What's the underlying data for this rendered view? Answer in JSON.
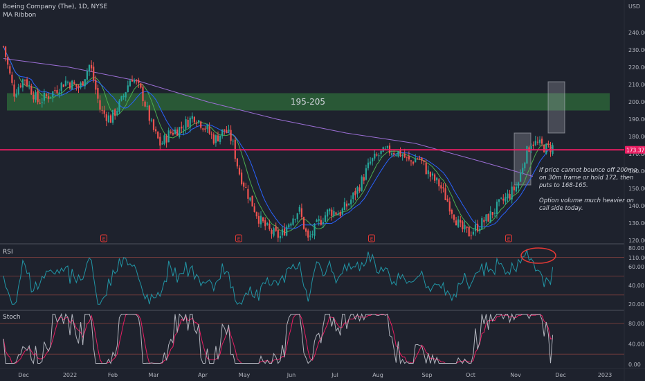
{
  "header": {
    "symbol": "Boeing Company (The), 1D, NYSE",
    "indicator": "MA Ribbon",
    "currency": "USD"
  },
  "price_pane": {
    "ylim": [
      110,
      245
    ],
    "yticks": [
      "240.00",
      "230.00",
      "220.00",
      "210.00",
      "200.00",
      "190.00",
      "180.00",
      "170.00",
      "160.00",
      "150.00",
      "140.00",
      "130.00",
      "120.00",
      "110.00"
    ],
    "ytick_values": [
      240,
      230,
      220,
      210,
      200,
      190,
      180,
      170,
      160,
      150,
      140,
      130,
      120,
      110
    ],
    "zone": {
      "label": "195-205",
      "low": 195,
      "high": 205,
      "color": "#2e6b3a"
    },
    "level": {
      "value": 172.3,
      "color": "#e91e63"
    },
    "price_badge": "173.37",
    "earnings_markers": [
      "E",
      "E",
      "E",
      "E"
    ],
    "annotation": [
      "If price cannot bounce off 200ma",
      "on 30m frame or hold 172, then",
      "puts to 168-165.",
      "",
      "Option volume much heavier on",
      "call side today."
    ]
  },
  "rsi_pane": {
    "title": "RSI",
    "yticks": [
      "80.00",
      "60.00",
      "40.00",
      "20.00"
    ],
    "ytick_values": [
      80,
      60,
      40,
      20
    ],
    "upper": 70,
    "lower": 30,
    "mid": 50
  },
  "stoch_pane": {
    "title": "Stoch",
    "yticks": [
      "80.00",
      "40.00",
      "0.00"
    ],
    "ytick_values": [
      80,
      40,
      0
    ],
    "upper": 80,
    "lower": 20
  },
  "x_axis": {
    "labels": [
      "Dec",
      "2022",
      "Feb",
      "Mar",
      "Apr",
      "May",
      "Jun",
      "Jul",
      "Aug",
      "Sep",
      "Oct",
      "Nov",
      "Dec",
      "2023"
    ]
  },
  "colors": {
    "up": "#26a69a",
    "down": "#ef5350",
    "ma_long": "#9c6fd6",
    "ma_blue": "#2962ff",
    "ma_green": "#4caf50",
    "rsi": "#2196a6",
    "stoch_k": "#b2b5be",
    "stoch_d": "#e91e63"
  },
  "chart_data": {
    "type": "candlestick",
    "title": "Boeing Company (The), 1D, NYSE",
    "ylabel": "USD",
    "x": [
      "Dec",
      "2022",
      "Feb",
      "Mar",
      "Apr",
      "May",
      "Jun",
      "Jul",
      "Aug",
      "Sep",
      "Oct",
      "Nov",
      "Dec",
      "2023"
    ],
    "close_path": [
      [
        "Nov-2021",
        232
      ],
      [
        "Dec",
        205
      ],
      [
        "2022",
        210
      ],
      [
        "Jan-mid",
        222
      ],
      [
        "Feb",
        190
      ],
      [
        "Feb-mid",
        215
      ],
      [
        "Mar",
        175
      ],
      [
        "Mar-mid",
        185
      ],
      [
        "Apr",
        190
      ],
      [
        "Apr-mid",
        178
      ],
      [
        "May",
        132
      ],
      [
        "May-mid",
        122
      ],
      [
        "Jun",
        140
      ],
      [
        "Jun-mid",
        120
      ],
      [
        "Jul",
        138
      ],
      [
        "Jul-mid",
        150
      ],
      [
        "Aug",
        168
      ],
      [
        "Aug-mid",
        172
      ],
      [
        "Sep",
        165
      ],
      [
        "Sep-mid",
        148
      ],
      [
        "Oct",
        125
      ],
      [
        "Oct-mid",
        130
      ],
      [
        "Nov",
        150
      ],
      [
        "Nov-mid",
        178
      ],
      [
        "Nov-end",
        173.37
      ]
    ],
    "horizontal_level": 172.3,
    "zone": [
      195,
      205
    ],
    "ylim": [
      110,
      245
    ],
    "legend": "none",
    "grid": false
  }
}
